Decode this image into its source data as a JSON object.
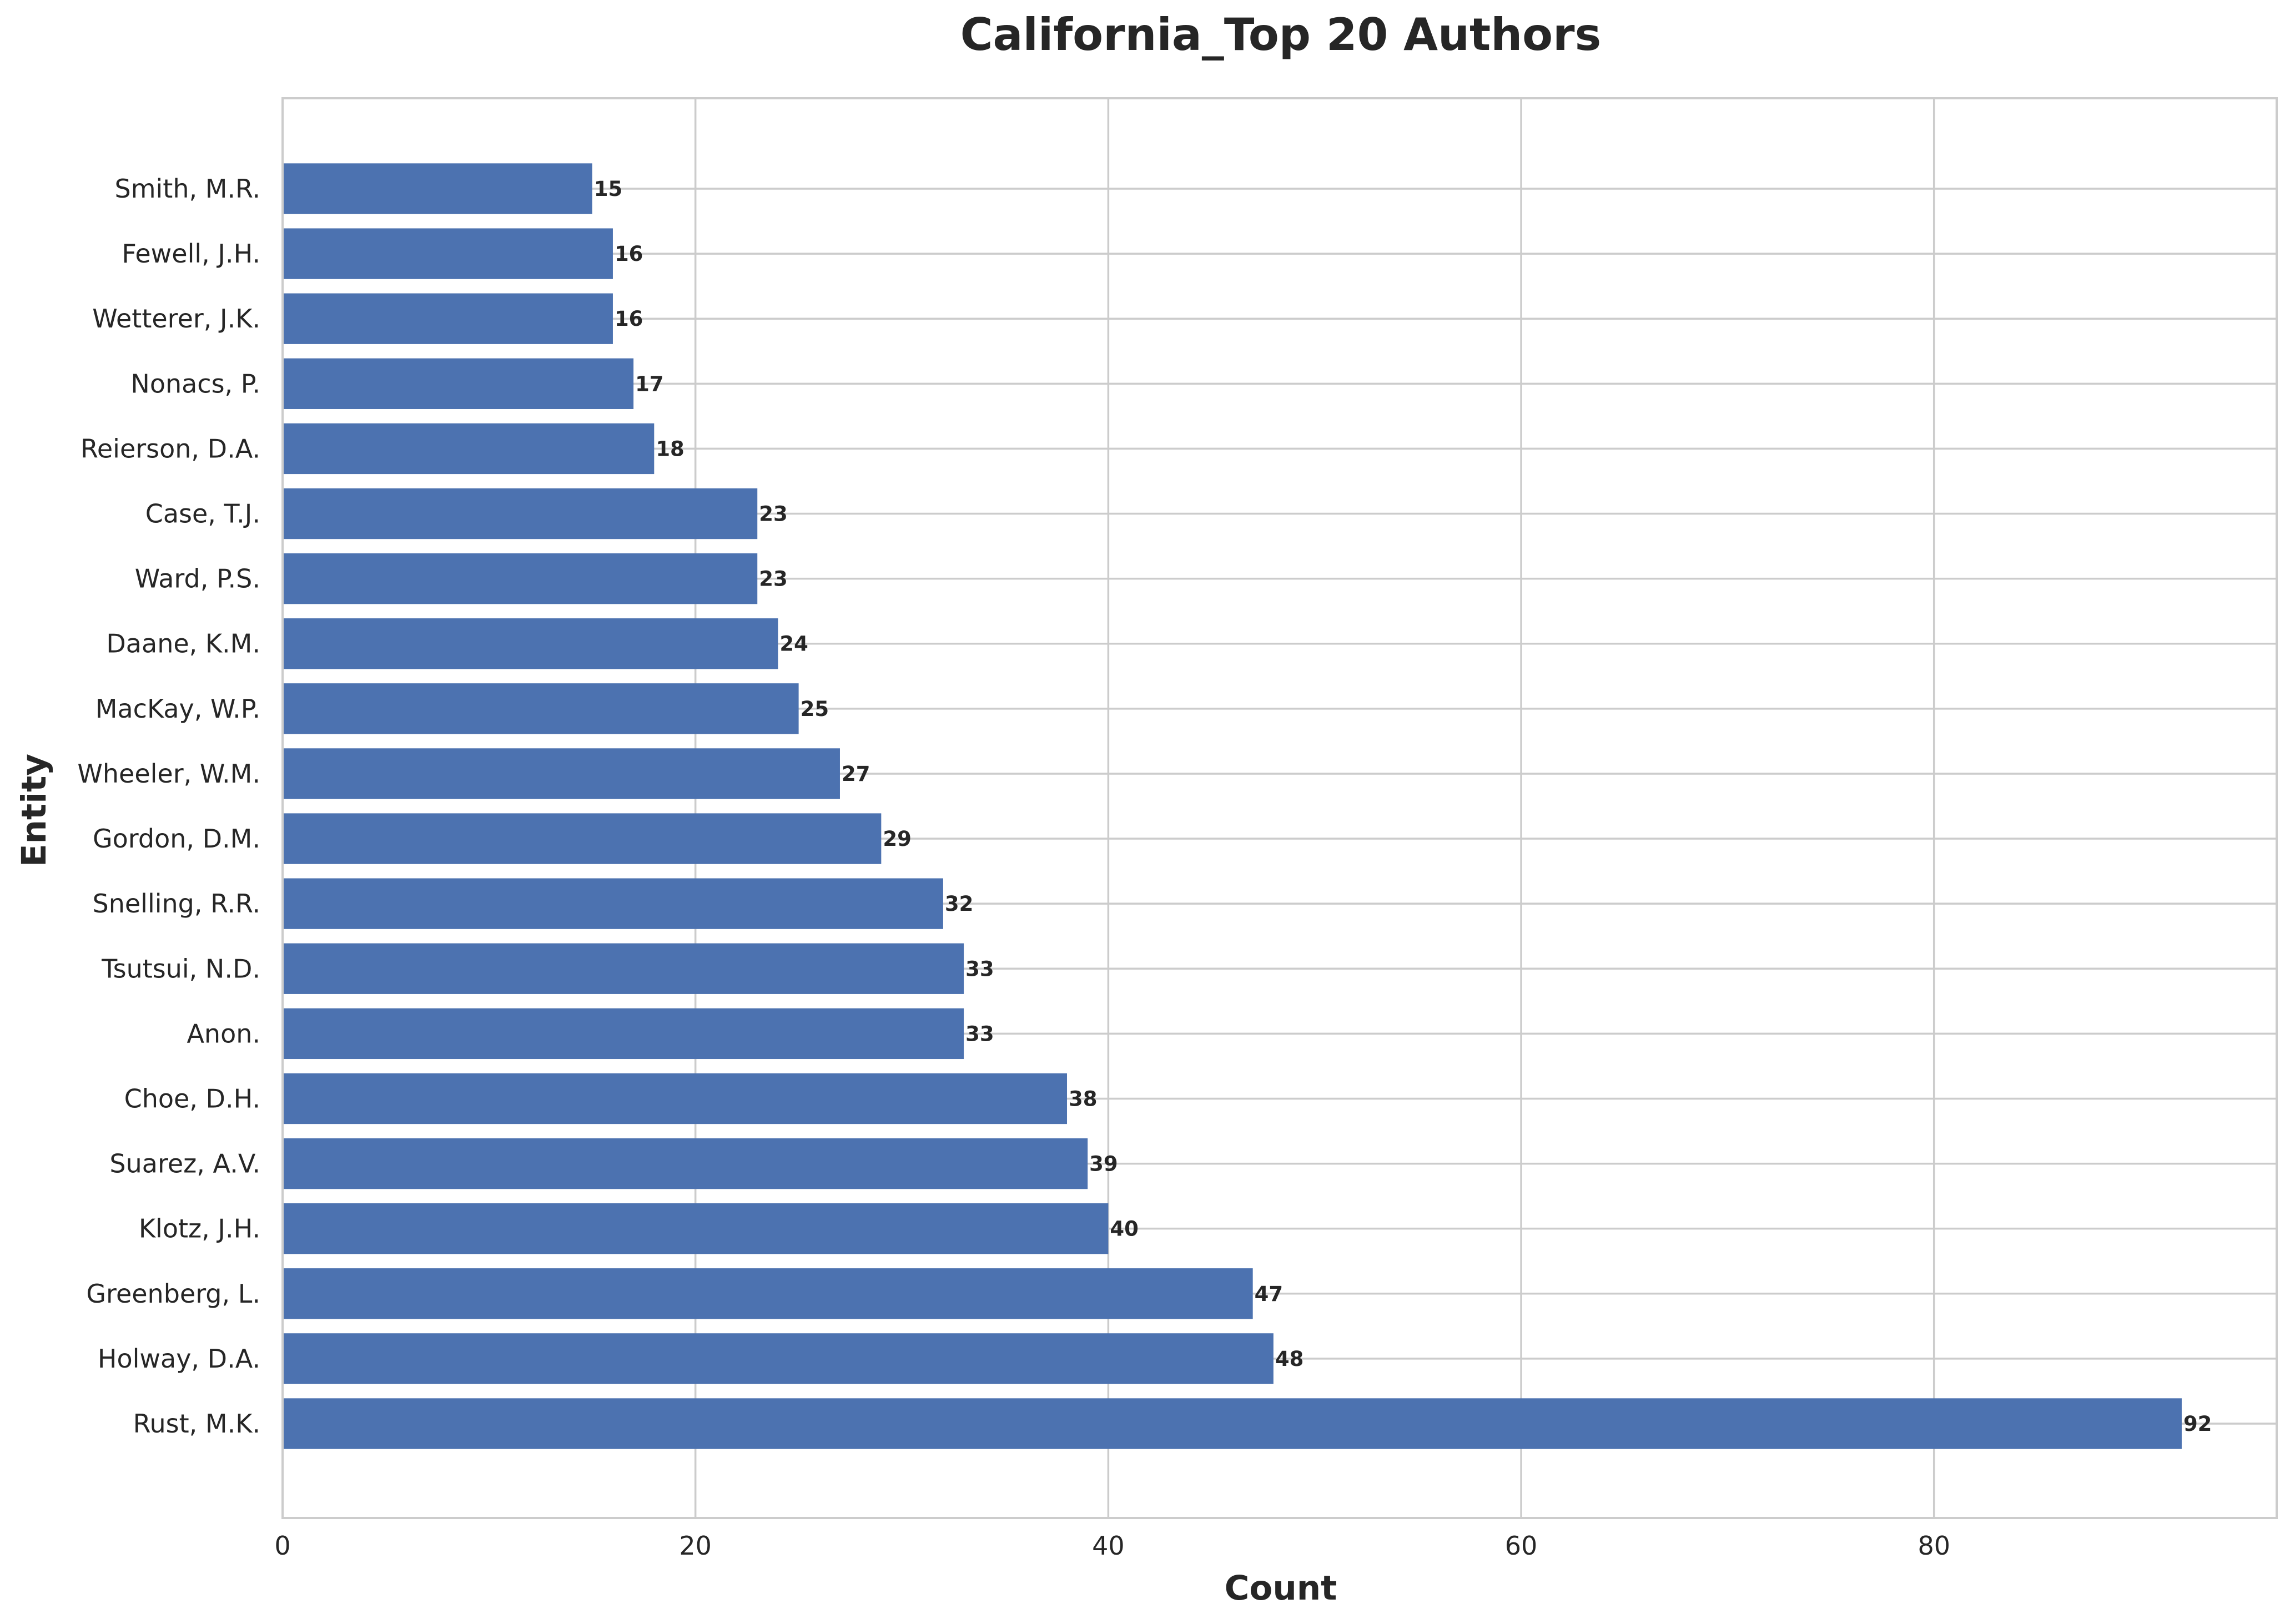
{
  "chart_data": {
    "type": "bar",
    "orientation": "horizontal",
    "title": "California_Top 20 Authors",
    "xlabel": "Count",
    "ylabel": "Entity",
    "xlim": [
      0,
      96.6
    ],
    "xticks": [
      0,
      20,
      40,
      60,
      80
    ],
    "grid": true,
    "bar_color": "#4c72b0",
    "categories": [
      "Rust, M.K.",
      "Holway, D.A.",
      "Greenberg, L.",
      "Klotz, J.H.",
      "Suarez, A.V.",
      "Choe, D.H.",
      "Anon.",
      "Tsutsui, N.D.",
      "Snelling, R.R.",
      "Gordon, D.M.",
      "Wheeler, W.M.",
      "MacKay, W.P.",
      "Daane, K.M.",
      "Ward, P.S.",
      "Case, T.J.",
      "Reierson, D.A.",
      "Nonacs, P.",
      "Wetterer, J.K.",
      "Fewell, J.H.",
      "Smith, M.R."
    ],
    "values": [
      92,
      48,
      47,
      40,
      39,
      38,
      33,
      33,
      32,
      29,
      27,
      25,
      24,
      23,
      23,
      18,
      17,
      16,
      16,
      15
    ]
  }
}
